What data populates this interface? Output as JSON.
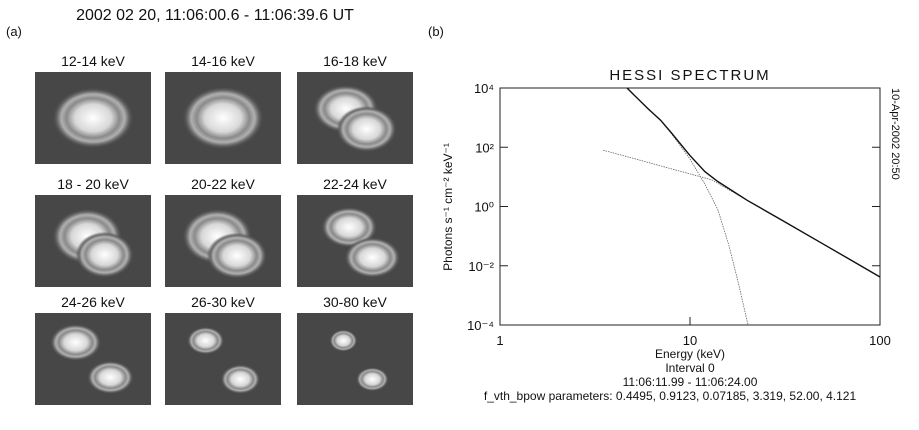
{
  "figure_title": "2002 02 20, 11:06:00.6 - 11:06:39.6 UT",
  "panel_labels": [
    "(a)",
    "(b)"
  ],
  "panel_a": {
    "tiles": [
      {
        "label": "12-14 keV"
      },
      {
        "label": "14-16 keV"
      },
      {
        "label": "16-18 keV"
      },
      {
        "label": "18 - 20 keV"
      },
      {
        "label": "20-22 keV"
      },
      {
        "label": "22-24 keV"
      },
      {
        "label": "24-26 keV"
      },
      {
        "label": "26-30 keV"
      },
      {
        "label": "30-80 keV"
      }
    ]
  },
  "chart_data": {
    "type": "line",
    "title": "HESSI SPECTRUM",
    "xlabel": "Energy (keV)",
    "ylabel": "Photons s⁻¹ cm⁻² keV⁻¹",
    "side_label": "10-Apr-2002 20:50",
    "notes": [
      "Interval 0",
      "11:06:11.99 - 11:06:24.00",
      "f_vth_bpow parameters: 0.4495, 0.9123, 0.07185, 3.319, 52.00, 4.121"
    ],
    "xscale": "log",
    "yscale": "log",
    "xlim": [
      1,
      100
    ],
    "ylim": [
      0.0001,
      10000
    ],
    "xticks": [
      1,
      10,
      100
    ],
    "yticks": [
      {
        "value": 0.0001,
        "label": "10⁻⁴"
      },
      {
        "value": 0.01,
        "label": "10⁻²"
      },
      {
        "value": 1,
        "label": "10⁰"
      },
      {
        "value": 100,
        "label": "10²"
      },
      {
        "value": 10000,
        "label": "10⁴"
      }
    ],
    "series": [
      {
        "color": "#666666",
        "x": [
          4.66,
          5,
          6,
          7,
          8,
          10,
          12,
          14,
          16,
          18,
          20.2
        ],
        "values": [
          10000,
          6310,
          1995,
          794,
          282,
          39.8,
          5.62,
          0.794,
          0.0501,
          0.00251,
          0.0001
        ]
      },
      {
        "color": "#666666",
        "x": [
          3.49,
          5,
          7,
          10,
          13,
          20,
          30,
          50,
          70,
          100
        ],
        "values": [
          79.4,
          42.7,
          23.4,
          12.6,
          7.94,
          1.62,
          0.363,
          0.055,
          0.0158,
          0.00417
        ]
      },
      {
        "color": "#111111",
        "x": [
          4.66,
          5,
          6,
          7,
          8,
          10,
          12,
          14,
          20,
          30,
          50,
          70,
          100
        ],
        "values": [
          10000,
          6350,
          2025,
          817,
          300,
          52.4,
          15,
          7.0,
          1.62,
          0.363,
          0.055,
          0.0158,
          0.00417
        ]
      }
    ]
  }
}
